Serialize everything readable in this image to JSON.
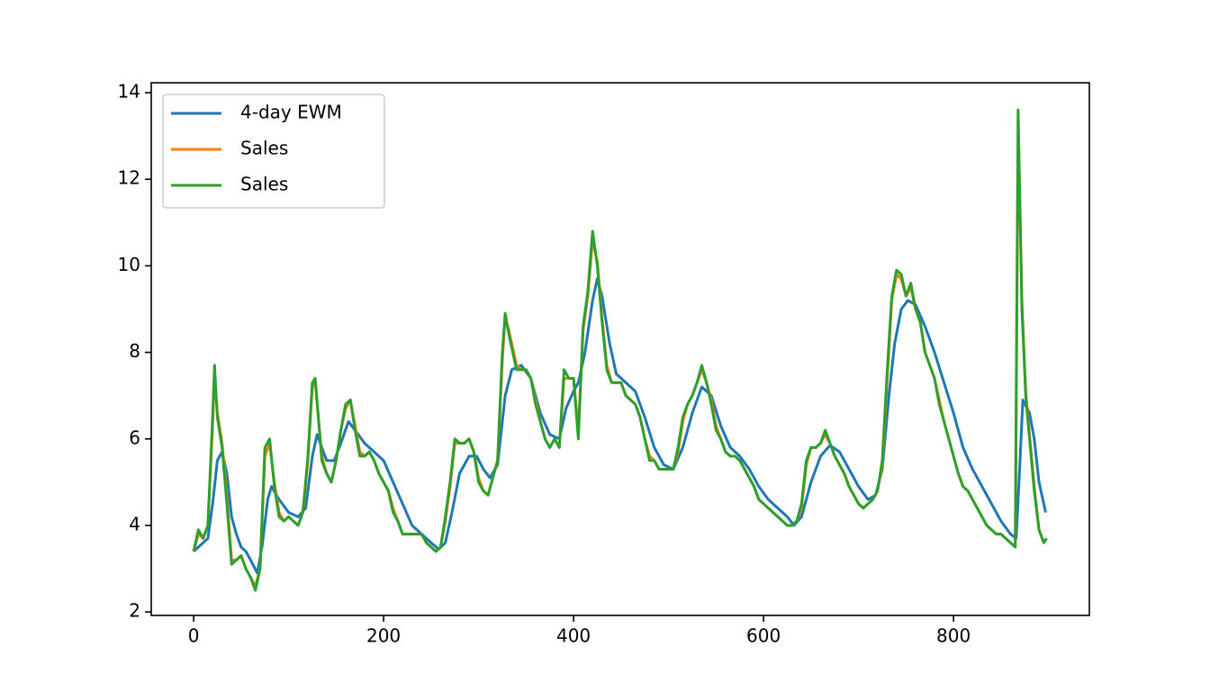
{
  "chart_data": {
    "type": "line",
    "legend": "upper left",
    "grid": false,
    "xlim": [
      -44.6,
      943
    ],
    "ylim": [
      1.92,
      14.23
    ],
    "xticks": [
      0,
      200,
      400,
      600,
      800
    ],
    "yticks": [
      2,
      4,
      6,
      8,
      10,
      12,
      14
    ],
    "series": [
      {
        "name": "4-day EWM",
        "color": "#1f77b4",
        "x": [
          0,
          10,
          15,
          20,
          25,
          30,
          35,
          40,
          45,
          50,
          55,
          60,
          67,
          72,
          78,
          82,
          90,
          100,
          110,
          118,
          125,
          130,
          135,
          140,
          148,
          155,
          163,
          170,
          180,
          190,
          200,
          210,
          220,
          230,
          240,
          250,
          258,
          265,
          272,
          280,
          290,
          298,
          305,
          312,
          320,
          328,
          335,
          345,
          355,
          365,
          375,
          385,
          392,
          400,
          405,
          412,
          420,
          425,
          430,
          438,
          445,
          455,
          465,
          475,
          485,
          495,
          505,
          515,
          525,
          535,
          545,
          555,
          565,
          575,
          585,
          595,
          605,
          615,
          625,
          632,
          640,
          650,
          660,
          670,
          680,
          690,
          700,
          710,
          718,
          725,
          732,
          738,
          745,
          752,
          760,
          770,
          780,
          790,
          800,
          810,
          820,
          830,
          840,
          850,
          860,
          866,
          870,
          873,
          880,
          885,
          890,
          897
        ],
        "values": [
          3.4,
          3.6,
          3.7,
          4.5,
          5.5,
          5.7,
          5.2,
          4.2,
          3.8,
          3.5,
          3.4,
          3.2,
          2.9,
          3.5,
          4.6,
          4.9,
          4.6,
          4.3,
          4.2,
          4.4,
          5.6,
          6.1,
          5.8,
          5.5,
          5.5,
          5.9,
          6.4,
          6.2,
          5.9,
          5.7,
          5.5,
          5.0,
          4.5,
          4.0,
          3.8,
          3.6,
          3.45,
          3.6,
          4.3,
          5.2,
          5.6,
          5.6,
          5.3,
          5.1,
          5.4,
          7.0,
          7.6,
          7.7,
          7.4,
          6.6,
          6.1,
          6.0,
          6.7,
          7.1,
          7.3,
          8.0,
          9.2,
          9.7,
          9.3,
          8.2,
          7.5,
          7.3,
          7.1,
          6.5,
          5.8,
          5.4,
          5.3,
          5.8,
          6.6,
          7.2,
          7.0,
          6.3,
          5.8,
          5.6,
          5.3,
          4.9,
          4.6,
          4.4,
          4.2,
          4.0,
          4.2,
          5.0,
          5.6,
          5.85,
          5.7,
          5.3,
          4.9,
          4.6,
          4.7,
          5.3,
          7.0,
          8.2,
          9.0,
          9.2,
          9.1,
          8.6,
          8.0,
          7.3,
          6.6,
          5.8,
          5.3,
          4.9,
          4.5,
          4.1,
          3.8,
          3.7,
          5.5,
          6.9,
          6.6,
          6.0,
          5.0,
          4.3
        ]
      },
      {
        "name": "Sales",
        "color": "#ff7f0e",
        "x": [
          0,
          5,
          10,
          15,
          20,
          22,
          25,
          30,
          35,
          40,
          45,
          50,
          55,
          60,
          65,
          70,
          75,
          80,
          85,
          90,
          95,
          100,
          105,
          110,
          115,
          120,
          125,
          128,
          135,
          140,
          145,
          150,
          155,
          160,
          165,
          170,
          175,
          180,
          185,
          190,
          195,
          200,
          205,
          210,
          215,
          220,
          225,
          230,
          240,
          245,
          250,
          255,
          260,
          265,
          270,
          275,
          280,
          285,
          290,
          295,
          300,
          305,
          310,
          315,
          320,
          325,
          328,
          332,
          340,
          345,
          350,
          355,
          360,
          365,
          370,
          375,
          380,
          385,
          390,
          395,
          400,
          405,
          410,
          415,
          420,
          425,
          430,
          435,
          440,
          445,
          450,
          455,
          460,
          465,
          470,
          475,
          480,
          485,
          490,
          495,
          500,
          505,
          510,
          515,
          520,
          525,
          530,
          535,
          540,
          545,
          550,
          555,
          560,
          565,
          570,
          575,
          580,
          585,
          590,
          595,
          600,
          605,
          610,
          615,
          620,
          625,
          630,
          635,
          640,
          645,
          650,
          655,
          660,
          665,
          670,
          675,
          680,
          685,
          690,
          695,
          700,
          705,
          710,
          715,
          720,
          725,
          730,
          735,
          740,
          745,
          750,
          755,
          760,
          765,
          770,
          775,
          780,
          785,
          790,
          795,
          800,
          805,
          810,
          815,
          820,
          825,
          830,
          835,
          840,
          845,
          850,
          855,
          860,
          865,
          868,
          872,
          876,
          880,
          885,
          890,
          895,
          898
        ],
        "values": [
          3.4,
          3.8,
          3.7,
          4.0,
          6.3,
          7.5,
          6.6,
          5.9,
          4.7,
          3.2,
          3.2,
          3.3,
          3.0,
          2.8,
          2.6,
          3.0,
          5.6,
          5.9,
          5.0,
          4.3,
          4.1,
          4.2,
          4.1,
          4.0,
          4.3,
          5.4,
          7.2,
          7.3,
          5.6,
          5.2,
          5.0,
          5.5,
          6.2,
          6.7,
          6.9,
          6.3,
          5.7,
          5.6,
          5.7,
          5.5,
          5.2,
          5.0,
          4.8,
          4.4,
          4.1,
          3.8,
          3.8,
          3.8,
          3.8,
          3.6,
          3.5,
          3.4,
          3.5,
          4.1,
          4.9,
          5.9,
          5.9,
          5.9,
          6.0,
          5.7,
          5.1,
          4.8,
          4.7,
          5.1,
          5.5,
          7.8,
          8.8,
          8.5,
          7.7,
          7.6,
          7.6,
          7.4,
          6.9,
          6.4,
          6.0,
          5.8,
          6.0,
          5.8,
          7.4,
          7.4,
          7.4,
          6.2,
          8.5,
          9.3,
          10.6,
          10.1,
          8.8,
          7.7,
          7.3,
          7.3,
          7.3,
          7.0,
          6.9,
          6.8,
          6.5,
          6.0,
          5.6,
          5.5,
          5.3,
          5.3,
          5.3,
          5.3,
          5.7,
          6.4,
          6.8,
          7.0,
          7.3,
          7.6,
          7.3,
          6.9,
          6.3,
          6.0,
          5.7,
          5.6,
          5.6,
          5.5,
          5.3,
          5.1,
          4.9,
          4.6,
          4.5,
          4.4,
          4.3,
          4.2,
          4.1,
          4.0,
          4.0,
          4.1,
          4.4,
          5.4,
          5.8,
          5.8,
          5.9,
          6.1,
          5.9,
          5.6,
          5.4,
          5.2,
          4.9,
          4.7,
          4.5,
          4.4,
          4.5,
          4.6,
          4.8,
          5.4,
          7.3,
          9.2,
          9.8,
          9.7,
          9.3,
          9.5,
          9.0,
          8.7,
          8.0,
          7.7,
          7.4,
          6.9,
          6.4,
          6.0,
          5.6,
          5.2,
          4.9,
          4.8,
          4.6,
          4.4,
          4.2,
          4.0,
          3.9,
          3.8,
          3.8,
          3.7,
          3.6,
          3.5,
          13.4,
          9.2,
          7.1,
          6.1,
          4.9,
          3.9,
          3.6,
          3.7
        ]
      },
      {
        "name": "Sales",
        "color": "#2ca02c",
        "x": [
          0,
          5,
          10,
          15,
          20,
          22,
          25,
          30,
          35,
          40,
          45,
          50,
          55,
          60,
          65,
          70,
          75,
          80,
          85,
          90,
          95,
          100,
          105,
          110,
          115,
          120,
          125,
          128,
          135,
          140,
          145,
          150,
          155,
          160,
          165,
          170,
          175,
          180,
          185,
          190,
          195,
          200,
          205,
          210,
          215,
          220,
          225,
          230,
          240,
          245,
          250,
          255,
          260,
          265,
          270,
          275,
          280,
          285,
          290,
          295,
          300,
          305,
          310,
          315,
          320,
          325,
          328,
          332,
          340,
          345,
          350,
          355,
          360,
          365,
          370,
          375,
          380,
          385,
          390,
          395,
          400,
          405,
          410,
          415,
          420,
          425,
          430,
          435,
          440,
          445,
          450,
          455,
          460,
          465,
          470,
          475,
          480,
          485,
          490,
          495,
          500,
          505,
          510,
          515,
          520,
          525,
          530,
          535,
          540,
          545,
          550,
          555,
          560,
          565,
          570,
          575,
          580,
          585,
          590,
          595,
          600,
          605,
          610,
          615,
          620,
          625,
          630,
          635,
          640,
          645,
          650,
          655,
          660,
          665,
          670,
          675,
          680,
          685,
          690,
          695,
          700,
          705,
          710,
          715,
          720,
          725,
          730,
          735,
          740,
          745,
          750,
          755,
          760,
          765,
          770,
          775,
          780,
          785,
          790,
          795,
          800,
          805,
          810,
          815,
          820,
          825,
          830,
          835,
          840,
          845,
          850,
          855,
          860,
          865,
          868,
          872,
          876,
          880,
          885,
          890,
          895,
          898
        ],
        "values": [
          3.4,
          3.9,
          3.7,
          4.0,
          6.5,
          7.7,
          6.5,
          5.8,
          4.5,
          3.1,
          3.2,
          3.3,
          3.0,
          2.8,
          2.5,
          3.0,
          5.8,
          6.0,
          4.9,
          4.2,
          4.1,
          4.2,
          4.1,
          4.0,
          4.3,
          5.5,
          7.3,
          7.4,
          5.5,
          5.2,
          5.0,
          5.5,
          6.2,
          6.8,
          6.9,
          6.2,
          5.6,
          5.6,
          5.7,
          5.5,
          5.2,
          5.0,
          4.8,
          4.3,
          4.1,
          3.8,
          3.8,
          3.8,
          3.8,
          3.6,
          3.5,
          3.4,
          3.5,
          4.2,
          5.0,
          6.0,
          5.9,
          5.9,
          6.0,
          5.7,
          5.0,
          4.8,
          4.7,
          5.1,
          5.5,
          8.0,
          8.9,
          8.4,
          7.6,
          7.6,
          7.6,
          7.4,
          6.8,
          6.4,
          6.0,
          5.8,
          6.0,
          5.8,
          7.6,
          7.4,
          7.4,
          6.0,
          8.6,
          9.4,
          10.8,
          10.0,
          8.7,
          7.6,
          7.3,
          7.3,
          7.3,
          7.0,
          6.9,
          6.8,
          6.5,
          6.0,
          5.5,
          5.5,
          5.3,
          5.3,
          5.3,
          5.3,
          5.8,
          6.5,
          6.8,
          7.0,
          7.3,
          7.7,
          7.3,
          6.8,
          6.2,
          6.0,
          5.7,
          5.6,
          5.6,
          5.5,
          5.3,
          5.1,
          4.9,
          4.6,
          4.5,
          4.4,
          4.3,
          4.2,
          4.1,
          4.0,
          4.0,
          4.1,
          4.5,
          5.5,
          5.8,
          5.8,
          5.9,
          6.2,
          5.9,
          5.6,
          5.4,
          5.2,
          4.9,
          4.7,
          4.5,
          4.4,
          4.5,
          4.6,
          4.8,
          5.5,
          7.5,
          9.3,
          9.9,
          9.8,
          9.3,
          9.6,
          9.0,
          8.7,
          8.0,
          7.7,
          7.4,
          6.8,
          6.4,
          6.0,
          5.6,
          5.2,
          4.9,
          4.8,
          4.6,
          4.4,
          4.2,
          4.0,
          3.9,
          3.8,
          3.8,
          3.7,
          3.6,
          3.5,
          13.6,
          9.0,
          7.0,
          6.0,
          4.8,
          3.9,
          3.6,
          3.7
        ]
      }
    ]
  }
}
